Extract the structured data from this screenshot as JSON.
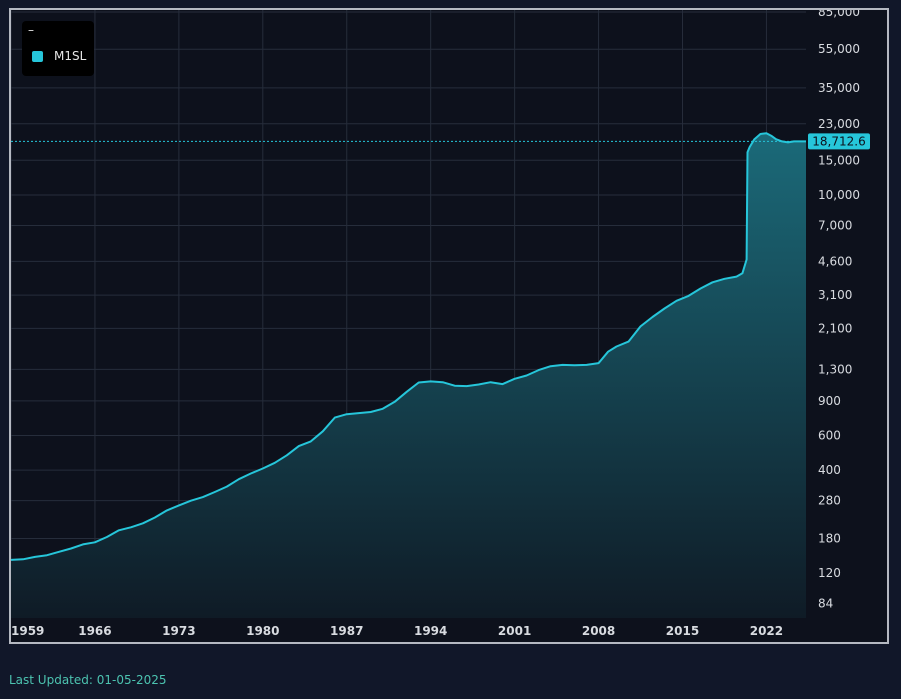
{
  "chart_data": {
    "type": "area",
    "series": [
      {
        "name": "M1SL",
        "color": "#26c6da",
        "x": [
          1959.0,
          1960.0,
          1961.0,
          1962.0,
          1963.0,
          1964.0,
          1965.0,
          1966.0,
          1967.0,
          1968.0,
          1969.0,
          1970.0,
          1971.0,
          1972.0,
          1973.0,
          1974.0,
          1975.0,
          1976.0,
          1977.0,
          1978.0,
          1979.0,
          1980.0,
          1981.0,
          1982.0,
          1983.0,
          1984.0,
          1985.0,
          1986.0,
          1987.0,
          1988.0,
          1989.0,
          1990.0,
          1991.0,
          1992.0,
          1993.0,
          1994.0,
          1995.0,
          1996.0,
          1997.0,
          1998.0,
          1999.0,
          2000.0,
          2001.0,
          2002.0,
          2003.0,
          2004.0,
          2005.0,
          2006.0,
          2007.0,
          2008.0,
          2008.8,
          2009.5,
          2010.5,
          2011.5,
          2012.5,
          2013.5,
          2014.5,
          2015.5,
          2016.5,
          2017.5,
          2018.5,
          2019.5,
          2020.0,
          2020.35,
          2020.42,
          2020.6,
          2021.0,
          2021.5,
          2022.0,
          2022.4,
          2022.8,
          2023.3,
          2023.8,
          2024.3,
          2024.9,
          2025.3
        ],
        "values": [
          140,
          141,
          145,
          148,
          154,
          160,
          168,
          172,
          183,
          198,
          205,
          215,
          230,
          250,
          265,
          280,
          292,
          310,
          330,
          360,
          385,
          408,
          436,
          476,
          530,
          560,
          630,
          740,
          770,
          780,
          790,
          820,
          890,
          1000,
          1115,
          1130,
          1120,
          1075,
          1070,
          1090,
          1120,
          1095,
          1165,
          1210,
          1290,
          1350,
          1370,
          1365,
          1370,
          1400,
          1600,
          1700,
          1800,
          2150,
          2400,
          2650,
          2900,
          3070,
          3350,
          3600,
          3750,
          3850,
          4000,
          4700,
          16500,
          17500,
          19200,
          20400,
          20600,
          20000,
          19200,
          18700,
          18500,
          18700,
          18712.6,
          18712.6
        ]
      }
    ],
    "y_scale": "log",
    "ylim": [
      71,
      87000
    ],
    "xlim": [
      1959.0,
      2025.3
    ],
    "y_ticks": [
      "84",
      "120",
      "180",
      "280",
      "400",
      "600",
      "900",
      "1,300",
      "2,100",
      "3,100",
      "4,600",
      "7,000",
      "10,000",
      "15,000",
      "23,000",
      "35,000",
      "55,000",
      "85,000"
    ],
    "y_tick_values": [
      84,
      120,
      180,
      280,
      400,
      600,
      900,
      1300,
      2100,
      3100,
      4600,
      7000,
      10000,
      15000,
      23000,
      35000,
      55000,
      85000
    ],
    "x_ticks": [
      "1959",
      "1966",
      "1973",
      "1980",
      "1987",
      "1994",
      "2001",
      "2008",
      "2015",
      "2022"
    ],
    "x_tick_values": [
      1959,
      1966,
      1973,
      1980,
      1987,
      1994,
      2001,
      2008,
      2015,
      2022
    ],
    "last_value": 18712.6,
    "last_value_label": "18,712.6",
    "grid": true,
    "legend_position": "top-left",
    "legend_title": "–",
    "background": "#0d111c",
    "area_top_color": "#1b6a79",
    "area_bottom_color": "#0f1b26"
  },
  "footer": {
    "last_updated": "Last Updated: 01-05-2025"
  }
}
